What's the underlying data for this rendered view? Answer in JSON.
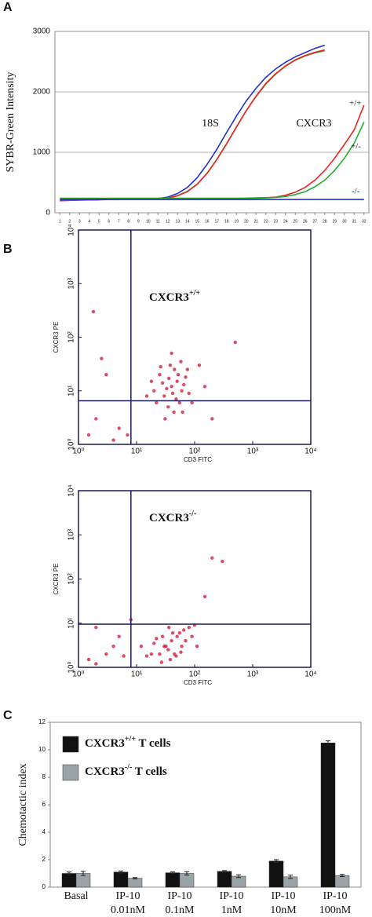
{
  "chart_data": [
    {
      "type": "line",
      "panel": "A",
      "ylabel": "SYBR-Green Intensity",
      "x": [
        1,
        2,
        3,
        4,
        5,
        6,
        7,
        8,
        9,
        10,
        11,
        12,
        13,
        14,
        15,
        16,
        17,
        18,
        19,
        20,
        21,
        22,
        23,
        24,
        25,
        26,
        27,
        28,
        29,
        30,
        31,
        32
      ],
      "xlim": [
        0.5,
        32.5
      ],
      "xticks": [
        1,
        2,
        3,
        4,
        5,
        6,
        7,
        8,
        9,
        10,
        11,
        12,
        13,
        14,
        15,
        16,
        17,
        18,
        19,
        20,
        21,
        22,
        23,
        24,
        25,
        26,
        27,
        28,
        29,
        30,
        31,
        32
      ],
      "ylim": [
        0,
        3000
      ],
      "yticks": [
        0,
        1000,
        2000,
        3000
      ],
      "grid": true,
      "annotations": [
        "18S",
        "CXCR3",
        "+/+",
        "+/-",
        "-/-"
      ],
      "series": [
        {
          "color": "#2233cc",
          "values": [
            200,
            205,
            210,
            213,
            216,
            220,
            223,
            226,
            228,
            230,
            235,
            260,
            320,
            420,
            580,
            800,
            1050,
            1330,
            1600,
            1850,
            2060,
            2240,
            2380,
            2490,
            2580,
            2650,
            2720,
            2770,
            null,
            null,
            null,
            null
          ]
        },
        {
          "color": "#22aa33",
          "values": [
            205,
            208,
            212,
            215,
            218,
            222,
            226,
            229,
            232,
            235,
            238,
            245,
            285,
            355,
            475,
            655,
            885,
            1145,
            1420,
            1690,
            1925,
            2130,
            2295,
            2425,
            2525,
            2595,
            2645,
            2680,
            null,
            null,
            null,
            null
          ]
        },
        {
          "color": "#ee2222",
          "values": [
            200,
            204,
            208,
            212,
            216,
            220,
            224,
            228,
            231,
            234,
            237,
            242,
            280,
            350,
            470,
            650,
            880,
            1140,
            1420,
            1690,
            1930,
            2140,
            2300,
            2430,
            2530,
            2600,
            2655,
            2695,
            null,
            null,
            null,
            null
          ]
        },
        {
          "color": "#ee2222",
          "values": [
            240,
            240,
            240,
            240,
            240,
            240,
            240,
            240,
            240,
            240,
            240,
            240,
            240,
            240,
            240,
            240,
            240,
            240,
            240,
            242,
            245,
            250,
            260,
            290,
            340,
            420,
            540,
            700,
            900,
            1130,
            1370,
            1780
          ]
        },
        {
          "color": "#22aa33",
          "values": [
            235,
            235,
            235,
            235,
            235,
            235,
            235,
            235,
            235,
            235,
            235,
            235,
            235,
            235,
            235,
            235,
            235,
            235,
            235,
            237,
            240,
            245,
            255,
            270,
            300,
            350,
            430,
            540,
            700,
            900,
            1150,
            1500
          ]
        },
        {
          "color": "#2233cc",
          "values": [
            220,
            220,
            220,
            220,
            220,
            220,
            220,
            220,
            220,
            220,
            220,
            220,
            220,
            220,
            220,
            220,
            220,
            220,
            220,
            220,
            220,
            220,
            220,
            220,
            220,
            220,
            220,
            220,
            220,
            220,
            220,
            220
          ]
        }
      ]
    },
    {
      "type": "scatter",
      "panel": "B",
      "title": "CXCR3",
      "title_sup": "+/+",
      "xlabel": "CD3 FITC",
      "ylabel": "CXCR3 PE",
      "color": "#cc1133",
      "log": true,
      "xlim": [
        1,
        10000
      ],
      "ylim": [
        1,
        10000
      ],
      "xticks": [
        {
          "value": 1,
          "label": "10⁰"
        },
        {
          "value": 10,
          "label": "10¹"
        },
        {
          "value": 100,
          "label": "10²"
        },
        {
          "value": 1000,
          "label": "10³"
        },
        {
          "value": 10000,
          "label": "10⁴"
        }
      ],
      "yticks": [
        {
          "value": 1,
          "label": "10⁰"
        },
        {
          "value": 10,
          "label": "10¹"
        },
        {
          "value": 100,
          "label": "10²"
        },
        {
          "value": 1000,
          "label": "10³"
        },
        {
          "value": 10000,
          "label": "10⁴"
        }
      ],
      "gates": {
        "x": 8,
        "y": 6.5
      },
      "x": [
        40,
        30,
        50,
        25,
        60,
        35,
        45,
        20,
        55,
        70,
        28,
        38,
        42,
        33,
        65,
        48,
        22,
        80,
        26,
        52,
        36,
        44,
        31,
        58,
        18,
        75,
        90,
        15,
        40,
        62,
        2,
        1.5,
        3,
        5,
        200,
        500,
        1.8,
        120,
        4,
        2.5,
        7,
        150
      ],
      "y": [
        12,
        8,
        15,
        20,
        10,
        5,
        25,
        10,
        6,
        18,
        14,
        30,
        9,
        11,
        13,
        7,
        6,
        9,
        28,
        20,
        17,
        4,
        3,
        35,
        15,
        25,
        6,
        8,
        50,
        4,
        3,
        1.5,
        20,
        2,
        3,
        80,
        300,
        30,
        1.2,
        40,
        1.5,
        12
      ]
    },
    {
      "type": "scatter",
      "title": "CXCR3",
      "title_sup": "-/-",
      "xlabel": "CD3 FITC",
      "ylabel": "CXCR3 PE",
      "color": "#cc1133",
      "log": true,
      "xlim": [
        1,
        10000
      ],
      "ylim": [
        1,
        10000
      ],
      "xticks": [
        {
          "value": 1,
          "label": "10⁰"
        },
        {
          "value": 10,
          "label": "10¹"
        },
        {
          "value": 100,
          "label": "10²"
        },
        {
          "value": 1000,
          "label": "10³"
        },
        {
          "value": 10000,
          "label": "10⁴"
        }
      ],
      "yticks": [
        {
          "value": 1,
          "label": "10⁰"
        },
        {
          "value": 10,
          "label": "10¹"
        },
        {
          "value": 100,
          "label": "10²"
        },
        {
          "value": 1000,
          "label": "10³"
        },
        {
          "value": 10000,
          "label": "10⁴"
        }
      ],
      "gates": {
        "x": 8,
        "y": 9.5
      },
      "x": [
        30,
        40,
        25,
        50,
        35,
        20,
        60,
        45,
        28,
        55,
        38,
        70,
        18,
        65,
        32,
        48,
        22,
        80,
        42,
        27,
        90,
        15,
        58,
        12,
        100,
        36,
        5,
        3,
        2,
        1.5,
        8,
        4,
        300,
        200,
        150,
        2,
        6,
        110
      ],
      "y": [
        3,
        4,
        2,
        5,
        2.5,
        3.5,
        3,
        2,
        5,
        6,
        1.5,
        4,
        2,
        7,
        3,
        1.8,
        4.5,
        8,
        6,
        1.3,
        5,
        1.8,
        2.2,
        3,
        9,
        8,
        5,
        2,
        8,
        1.5,
        12,
        3,
        250,
        300,
        40,
        1.2,
        1.8,
        3
      ]
    },
    {
      "type": "bar",
      "panel": "C",
      "ylabel": "Chemotactic index",
      "categories": [
        [
          "Basal"
        ],
        [
          "IP-10",
          "0.01nM"
        ],
        [
          "IP-10",
          "0.1nM"
        ],
        [
          "IP-10",
          "1nM"
        ],
        [
          "IP-10",
          "10nM"
        ],
        [
          "IP-10",
          "100nM"
        ]
      ],
      "ylim": [
        0,
        12
      ],
      "yticks": [
        0,
        2,
        4,
        6,
        8,
        10,
        12
      ],
      "series": [
        {
          "name": [
            "CXCR3",
            "+/+",
            " T cells"
          ],
          "color": "#111111",
          "values": [
            1.0,
            1.1,
            1.05,
            1.15,
            1.9,
            10.5
          ],
          "errors": [
            0.1,
            0.08,
            0.06,
            0.06,
            0.1,
            0.15
          ]
        },
        {
          "name": [
            "CXCR3",
            "-/-",
            " T cells"
          ],
          "color": "#9aa4a8",
          "values": [
            1.0,
            0.65,
            1.0,
            0.8,
            0.75,
            0.85
          ],
          "errors": [
            0.15,
            0.05,
            0.12,
            0.1,
            0.12,
            0.08
          ]
        }
      ]
    }
  ]
}
